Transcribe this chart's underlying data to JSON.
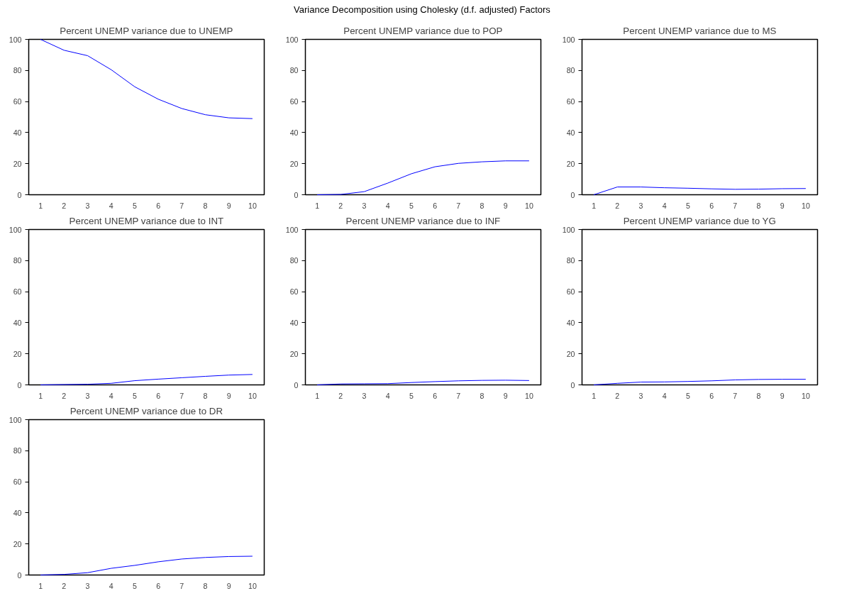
{
  "chart_data": [
    {
      "type": "other",
      "title": "Variance Decomposition using Cholesky (d.f. adjusted) Factors"
    },
    {
      "type": "line",
      "title": "Percent UNEMP variance due to UNEMP",
      "categories": [
        "1",
        "2",
        "3",
        "4",
        "5",
        "6",
        "7",
        "8",
        "9",
        "10"
      ],
      "series": [
        {
          "color": "#0000ff",
          "values": [
            100,
            93,
            89.5,
            80.5,
            69.5,
            61.5,
            55.5,
            51.5,
            49.5,
            49
          ]
        }
      ],
      "ylim": [
        0,
        100
      ],
      "yticks": [
        0,
        20,
        40,
        60,
        80,
        100
      ]
    },
    {
      "type": "line",
      "title": "Percent UNEMP variance due to POP",
      "categories": [
        "1",
        "2",
        "3",
        "4",
        "5",
        "6",
        "7",
        "8",
        "9",
        "10"
      ],
      "series": [
        {
          "color": "#0000ff",
          "values": [
            0,
            0.2,
            2,
            7.5,
            13.5,
            18,
            20.2,
            21.2,
            21.8,
            21.8
          ]
        }
      ],
      "ylim": [
        0,
        100
      ],
      "yticks": [
        0,
        20,
        40,
        60,
        80,
        100
      ]
    },
    {
      "type": "line",
      "title": "Percent UNEMP variance due to MS",
      "categories": [
        "1",
        "2",
        "3",
        "4",
        "5",
        "6",
        "7",
        "8",
        "9",
        "10"
      ],
      "series": [
        {
          "color": "#0000ff",
          "values": [
            0,
            5,
            5,
            4.5,
            4.2,
            3.8,
            3.5,
            3.6,
            3.9,
            4
          ]
        }
      ],
      "ylim": [
        0,
        100
      ],
      "yticks": [
        0,
        20,
        40,
        60,
        80,
        100
      ]
    },
    {
      "type": "line",
      "title": "Percent UNEMP variance due to INT",
      "categories": [
        "1",
        "2",
        "3",
        "4",
        "5",
        "6",
        "7",
        "8",
        "9",
        "10"
      ],
      "series": [
        {
          "color": "#0000ff",
          "values": [
            0,
            0.2,
            0.4,
            1,
            2.7,
            3.7,
            4.6,
            5.5,
            6.3,
            6.7
          ]
        }
      ],
      "ylim": [
        0,
        100
      ],
      "yticks": [
        0,
        20,
        40,
        60,
        80,
        100
      ]
    },
    {
      "type": "line",
      "title": "Percent UNEMP variance due to INF",
      "categories": [
        "1",
        "2",
        "3",
        "4",
        "5",
        "6",
        "7",
        "8",
        "9",
        "10"
      ],
      "series": [
        {
          "color": "#0000ff",
          "values": [
            0,
            0.6,
            0.7,
            0.8,
            1.5,
            2.1,
            2.6,
            2.9,
            3,
            2.8
          ]
        }
      ],
      "ylim": [
        0,
        100
      ],
      "yticks": [
        0,
        20,
        40,
        60,
        80,
        100
      ]
    },
    {
      "type": "line",
      "title": "Percent UNEMP variance due to YG",
      "categories": [
        "1",
        "2",
        "3",
        "4",
        "5",
        "6",
        "7",
        "8",
        "9",
        "10"
      ],
      "series": [
        {
          "color": "#0000ff",
          "values": [
            0,
            1,
            1.8,
            1.9,
            2.2,
            2.6,
            3.2,
            3.5,
            3.6,
            3.6
          ]
        }
      ],
      "ylim": [
        0,
        100
      ],
      "yticks": [
        0,
        20,
        40,
        60,
        80,
        100
      ]
    },
    {
      "type": "line",
      "title": "Percent UNEMP variance due to DR",
      "categories": [
        "1",
        "2",
        "3",
        "4",
        "5",
        "6",
        "7",
        "8",
        "9",
        "10"
      ],
      "series": [
        {
          "color": "#0000ff",
          "values": [
            0,
            0.4,
            1.5,
            4.3,
            6.2,
            8.5,
            10.3,
            11.3,
            11.9,
            12.1
          ]
        }
      ],
      "ylim": [
        0,
        100
      ],
      "yticks": [
        0,
        20,
        40,
        60,
        80,
        100
      ]
    }
  ]
}
